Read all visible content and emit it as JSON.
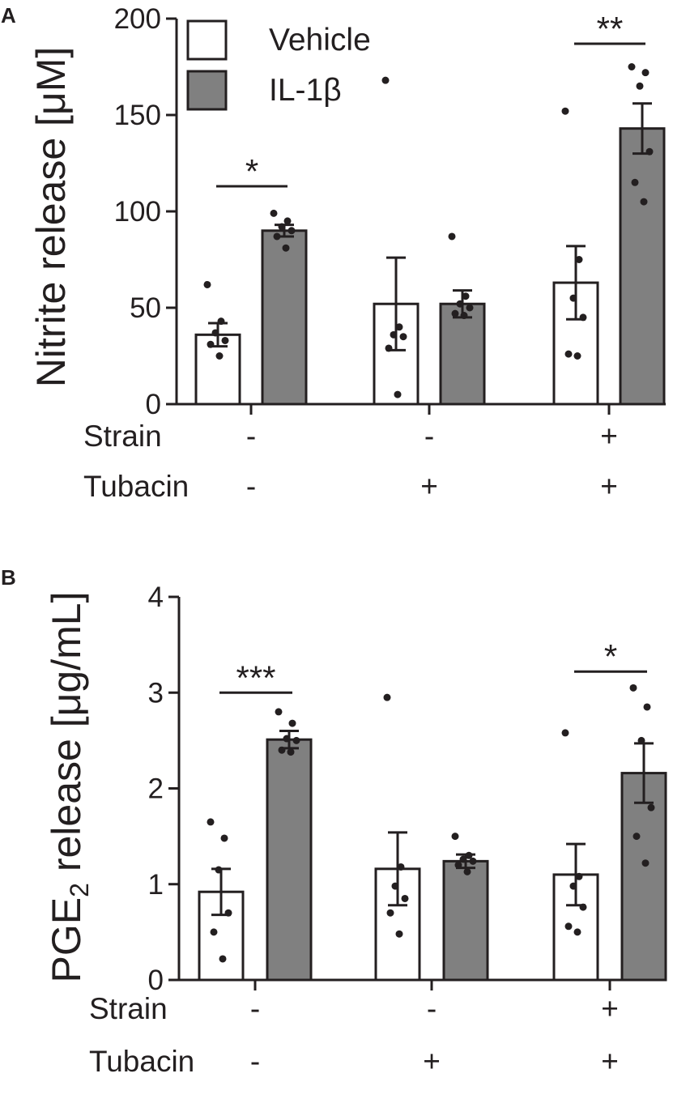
{
  "chart_data": [
    {
      "panel_label": "A",
      "type": "bar",
      "ylabel": "Nitrite release [μM]",
      "ylim": [
        0,
        200
      ],
      "yticks": [
        0,
        50,
        100,
        150,
        200
      ],
      "ytick_labels": [
        "0",
        "50",
        "100",
        "150",
        "200"
      ],
      "groups": [
        "group-1",
        "group-2",
        "group-3"
      ],
      "factor_rows": [
        {
          "label": "Strain",
          "values": [
            "-",
            "-",
            "+"
          ]
        },
        {
          "label": "Tubacin",
          "values": [
            "-",
            "+",
            "+"
          ]
        }
      ],
      "legend": {
        "position": "top-left",
        "entries": [
          {
            "name": "Vehicle",
            "fill": "#ffffff"
          },
          {
            "name": "IL-1β",
            "fill": "#808080"
          }
        ]
      },
      "series": [
        {
          "name": "Vehicle",
          "fill": "#ffffff",
          "values": [
            36,
            52,
            63
          ],
          "sem": [
            6,
            24,
            19
          ],
          "points": [
            [
              62,
              43,
              37,
              33,
              31,
              25
            ],
            [
              168,
              40,
              36,
              35,
              29,
              5
            ],
            [
              152,
              75,
              55,
              45,
              26,
              25
            ]
          ]
        },
        {
          "name": "IL-1β",
          "fill": "#808080",
          "values": [
            90,
            52,
            143
          ],
          "sem": [
            3,
            7,
            13
          ],
          "points": [
            [
              99,
              95,
              92,
              90,
              87,
              81
            ],
            [
              87,
              56,
              52,
              50,
              47,
              46
            ],
            [
              175,
              172,
              165,
              131,
              115,
              105
            ]
          ]
        }
      ],
      "significance": [
        {
          "group": 0,
          "label": "*",
          "y": 113
        },
        {
          "group": 2,
          "label": "**",
          "y": 187
        }
      ]
    },
    {
      "panel_label": "B",
      "type": "bar",
      "ylabel_main": "PGE",
      "ylabel_sub": "2",
      "ylabel_rest": " release [μg/mL]",
      "ylim": [
        0,
        4
      ],
      "yticks": [
        0,
        1,
        2,
        3,
        4
      ],
      "ytick_labels": [
        "0",
        "1",
        "2",
        "3",
        "4"
      ],
      "groups": [
        "group-1",
        "group-2",
        "group-3"
      ],
      "factor_rows": [
        {
          "label": "Strain",
          "values": [
            "-",
            "-",
            "+"
          ]
        },
        {
          "label": "Tubacin",
          "values": [
            "-",
            "+",
            "+"
          ]
        }
      ],
      "series": [
        {
          "name": "Vehicle",
          "fill": "#ffffff",
          "values": [
            0.92,
            1.16,
            1.1
          ],
          "sem": [
            0.24,
            0.38,
            0.32
          ],
          "points": [
            [
              1.65,
              1.48,
              1.15,
              0.7,
              0.5,
              0.22
            ],
            [
              2.95,
              1.18,
              0.98,
              0.85,
              0.7,
              0.48
            ],
            [
              2.58,
              1.08,
              0.98,
              0.76,
              0.56,
              0.5
            ]
          ]
        },
        {
          "name": "IL-1β",
          "fill": "#808080",
          "values": [
            2.51,
            1.24,
            2.16
          ],
          "sem": [
            0.09,
            0.07,
            0.31
          ],
          "points": [
            [
              2.8,
              2.68,
              2.52,
              2.5,
              2.4,
              2.38
            ],
            [
              1.5,
              1.3,
              1.26,
              1.24,
              1.2,
              1.13
            ],
            [
              3.05,
              2.85,
              2.5,
              1.8,
              1.5,
              1.22
            ]
          ]
        }
      ],
      "significance": [
        {
          "group": 0,
          "label": "***",
          "y": 3.0
        },
        {
          "group": 2,
          "label": "*",
          "y": 3.22
        }
      ]
    }
  ]
}
